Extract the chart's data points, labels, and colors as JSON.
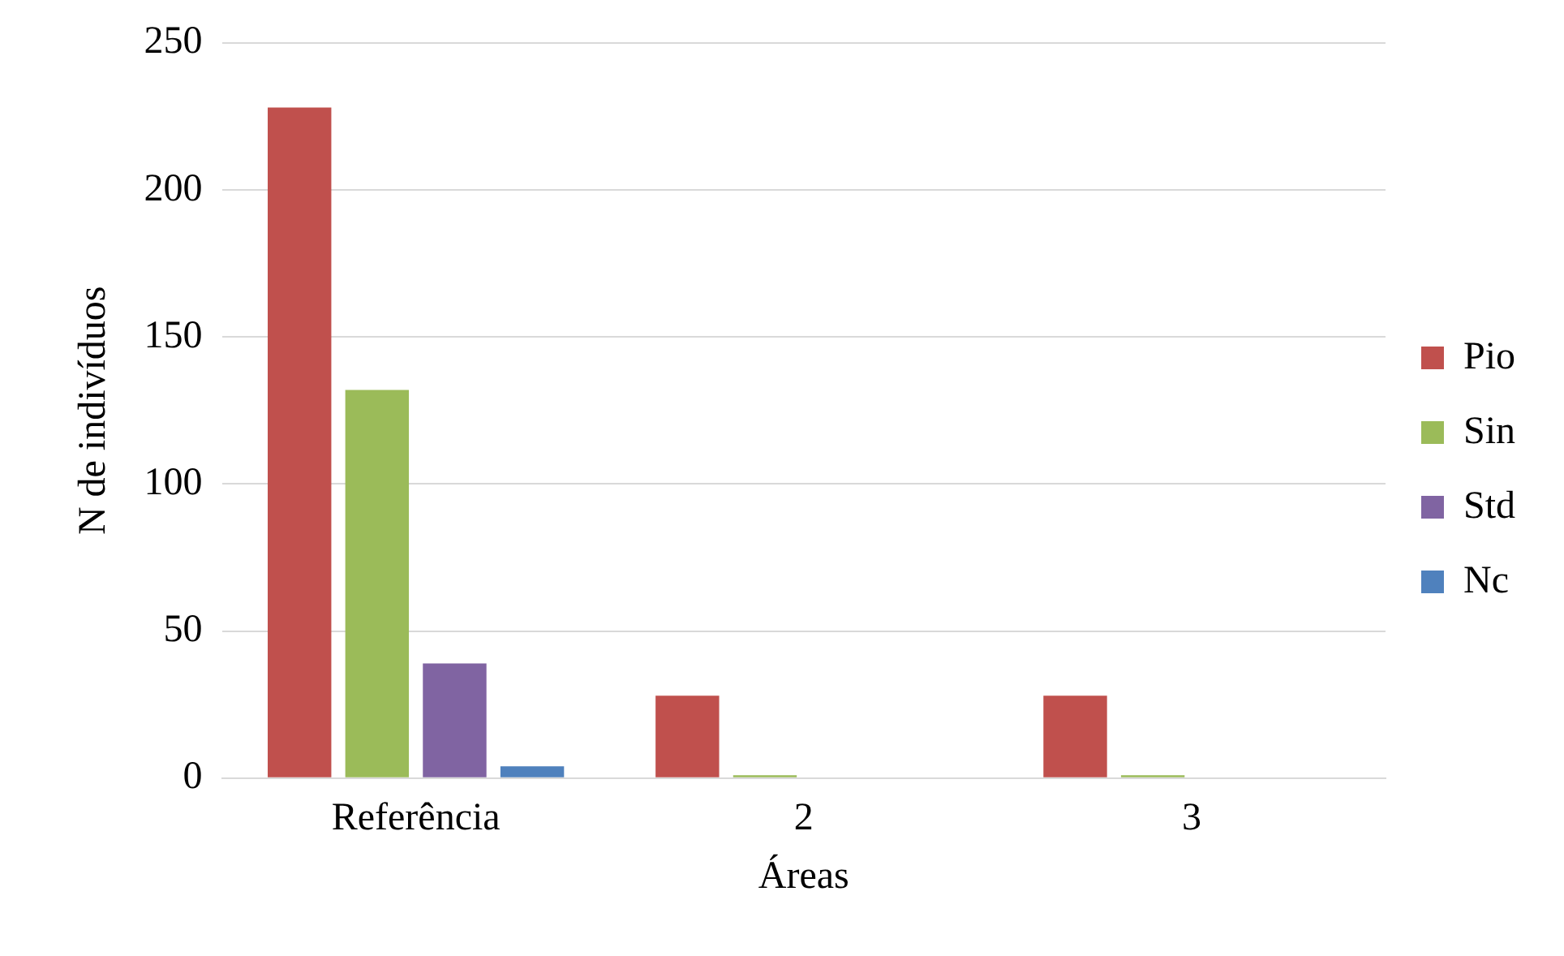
{
  "chart_data": {
    "type": "bar",
    "xlabel": "Áreas",
    "ylabel": "N de indivíduos",
    "categories": [
      "Referência",
      "2",
      "3"
    ],
    "series": [
      {
        "name": "Pio",
        "color": "#c0504d",
        "values": [
          228,
          28,
          28
        ]
      },
      {
        "name": "Sin",
        "color": "#9bbb59",
        "values": [
          132,
          1,
          1
        ]
      },
      {
        "name": "Std",
        "color": "#8064a2",
        "values": [
          39,
          0,
          0
        ]
      },
      {
        "name": "Nc",
        "color": "#4f81bd",
        "values": [
          4,
          0,
          0
        ]
      }
    ],
    "ylim": [
      0,
      250
    ],
    "yticks": [
      0,
      50,
      100,
      150,
      200,
      250
    ],
    "grid": "y",
    "legend": "right"
  }
}
